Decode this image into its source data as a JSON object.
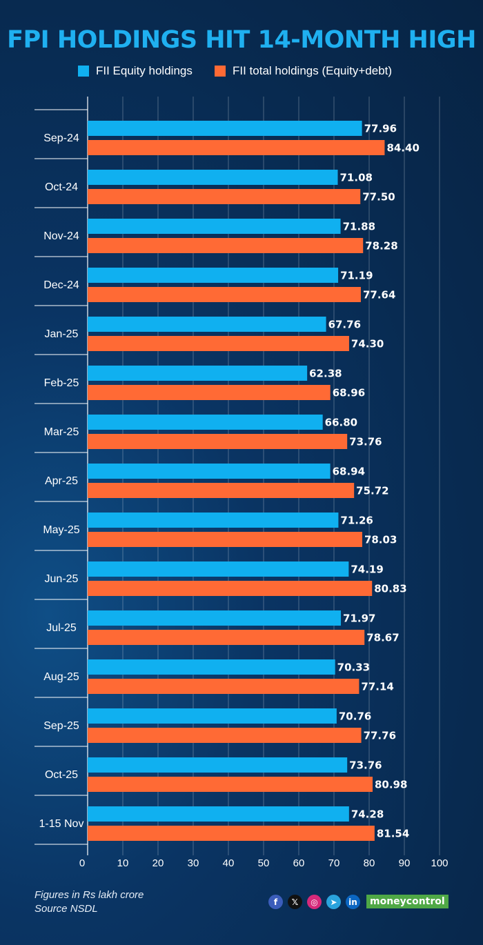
{
  "header": {
    "title": "FPI HOLDINGS HIT 14-MONTH HIGH"
  },
  "colors": {
    "equity": "#10b0f0",
    "total": "#ff6a35",
    "title": "#1fb0f0"
  },
  "chart_data": {
    "type": "bar",
    "orientation": "horizontal",
    "title": "FPI HOLDINGS HIT 14-MONTH HIGH",
    "categories": [
      "Sep-24",
      "Oct-24",
      "Nov-24",
      "Dec-24",
      "Jan-25",
      "Feb-25",
      "Mar-25",
      "Apr-25",
      "May-25",
      "Jun-25",
      "Jul-25",
      "Aug-25",
      "Sep-25",
      "Oct-25",
      "1-15 Nov"
    ],
    "series": [
      {
        "name": "FII Equity holdings",
        "values": [
          77.96,
          71.08,
          71.88,
          71.19,
          67.76,
          62.38,
          66.8,
          68.94,
          71.26,
          74.19,
          71.97,
          70.33,
          70.76,
          73.76,
          74.28
        ]
      },
      {
        "name": "FII total holdings (Equity+debt)",
        "values": [
          84.4,
          77.5,
          78.28,
          77.64,
          74.3,
          68.96,
          73.76,
          75.72,
          78.03,
          80.83,
          78.67,
          77.14,
          77.76,
          80.98,
          81.54
        ]
      }
    ],
    "xlim": [
      0,
      100
    ],
    "xticks": [
      0,
      10,
      20,
      30,
      40,
      50,
      60,
      70,
      80,
      90,
      100
    ],
    "xlabel": "",
    "ylabel": "",
    "legend": "top-center",
    "grid": true
  },
  "footer": {
    "note_line1": "Figures in Rs lakh crore",
    "note_line2": "Source NSDL",
    "brand": "moneycontrol"
  },
  "social": [
    {
      "icon": "facebook-icon",
      "glyph": "f",
      "color": "#3b5dbb"
    },
    {
      "icon": "x-icon",
      "glyph": "𝕏",
      "color": "#111111"
    },
    {
      "icon": "instagram-icon",
      "glyph": "◎",
      "color": "#d6297a"
    },
    {
      "icon": "telegram-icon",
      "glyph": "➤",
      "color": "#2aa3dd"
    },
    {
      "icon": "linkedin-icon",
      "glyph": "in",
      "color": "#0b66c2"
    }
  ]
}
